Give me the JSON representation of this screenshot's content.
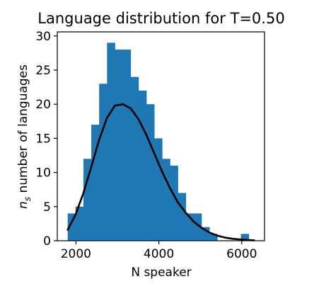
{
  "chart_data": {
    "type": "bar",
    "title": "Language distribution for T=0.50",
    "xlabel": "N speaker",
    "ylabel_prefix": "n",
    "ylabel_subscript": "s",
    "ylabel_rest": " number of languages",
    "xlim": [
      1550,
      6550
    ],
    "ylim": [
      0,
      30.6
    ],
    "xticks": [
      2000,
      4000,
      6000
    ],
    "yticks": [
      0,
      5,
      10,
      15,
      20,
      25,
      30
    ],
    "bar_color": "#1f77b4",
    "line_color": "#000000",
    "histogram": {
      "bin_edges": [
        1800,
        1990,
        2180,
        2370,
        2560,
        2750,
        2940,
        3130,
        3320,
        3510,
        3700,
        3890,
        4080,
        4270,
        4460,
        4650,
        4840,
        5030,
        5220,
        5410,
        5600,
        5790,
        5980,
        6170,
        6360
      ],
      "counts": [
        4,
        5,
        12,
        17,
        23,
        29,
        28,
        28,
        24,
        22,
        20,
        15,
        12,
        11,
        7,
        4,
        4,
        2,
        1,
        0,
        0,
        0,
        1,
        0
      ]
    },
    "series": [
      {
        "type": "line",
        "x": [
          1800,
          1990,
          2180,
          2370,
          2560,
          2750,
          2940,
          3130,
          3320,
          3510,
          3700,
          3890,
          4080,
          4270,
          4460,
          4650,
          4840,
          5030,
          5220,
          5410,
          5600,
          5790,
          5980,
          6170,
          6300
        ],
        "values": [
          1.6,
          3.8,
          7.0,
          10.8,
          14.8,
          18.0,
          19.8,
          20.0,
          19.4,
          17.8,
          15.5,
          12.8,
          10.1,
          7.7,
          5.6,
          4.1,
          2.8,
          1.9,
          1.2,
          0.75,
          0.45,
          0.28,
          0.18,
          0.1,
          0.06
        ]
      }
    ]
  }
}
